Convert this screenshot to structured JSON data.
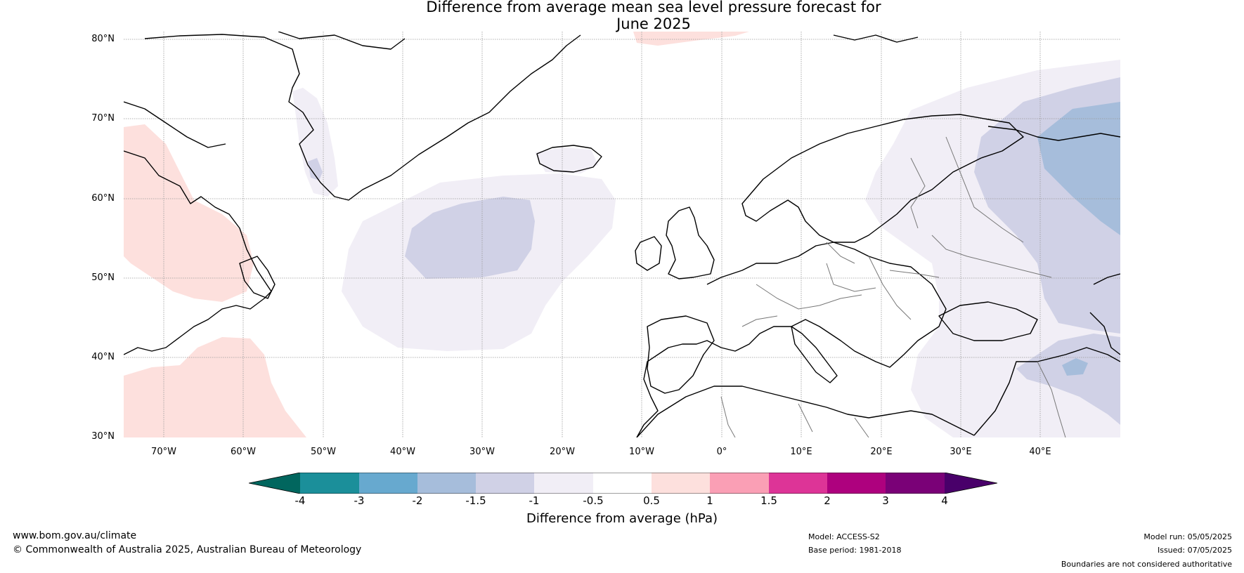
{
  "title": {
    "line1": "Difference from average mean sea level pressure forecast for",
    "line2": "June 2025"
  },
  "map": {
    "latitude_labels": [
      "80°N",
      "70°N",
      "60°N",
      "50°N",
      "40°N",
      "30°N"
    ],
    "longitude_labels": [
      "70°W",
      "60°W",
      "50°W",
      "40°W",
      "30°W",
      "20°W",
      "10°W",
      "0°",
      "10°E",
      "20°E",
      "30°E",
      "40°E"
    ],
    "extent": {
      "lon_min": -75,
      "lon_max": 50,
      "lat_min": 30,
      "lat_max": 81
    },
    "colors": {
      "land_outline": "#000000",
      "border": "#777777",
      "grid": "#888888",
      "neg_0_5_1": "#f1eef6",
      "neg_1_1_5": "#d0d1e6",
      "neg_1_5_2": "#a6bddb",
      "pos_0_5_1": "#fde0dd"
    }
  },
  "colorbar": {
    "ticks": [
      "-4",
      "-3",
      "-2",
      "-1.5",
      "-1",
      "-0.5",
      "0.5",
      "1",
      "1.5",
      "2",
      "3",
      "4"
    ],
    "colors": [
      "#01665e",
      "#1b8f9a",
      "#67a9cf",
      "#a6bddb",
      "#d0d1e6",
      "#f1eef6",
      "#ffffff",
      "#fde0dd",
      "#fa9fb5",
      "#dd3497",
      "#ae017e",
      "#7a0177",
      "#49006a"
    ],
    "label": "Difference from average (hPa)"
  },
  "footer": {
    "website": "www.bom.gov.au/climate",
    "copyright": "© Commonwealth of Australia 2025, Australian Bureau of Meteorology",
    "model": "Model: ACCESS-S2",
    "base_period": "Base period: 1981-2018",
    "model_run": "Model run: 05/05/2025",
    "issued": "Issued: 07/05/2025",
    "disclaimer": "Boundaries are not considered authoritative"
  }
}
